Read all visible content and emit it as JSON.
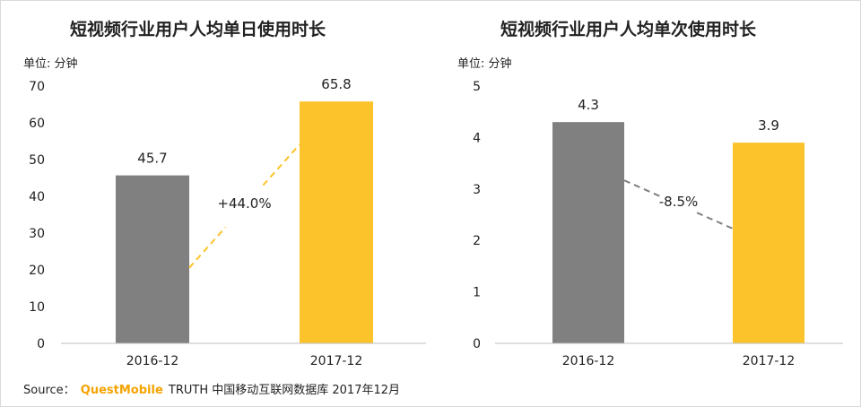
{
  "source": {
    "prefix": "Source：",
    "brand": "QuestMobile",
    "suffix": "TRUTH 中国移动互联网数据库 2017年12月"
  },
  "chart_data": [
    {
      "type": "bar",
      "title": "短视频行业用户人均单日使用时长",
      "unit_label": "单位: 分钟",
      "categories": [
        "2016-12",
        "2017-12"
      ],
      "values": [
        45.7,
        65.8
      ],
      "value_labels": [
        "45.7",
        "65.8"
      ],
      "ylim": [
        0,
        70
      ],
      "yticks": [
        0,
        10,
        20,
        30,
        40,
        50,
        60,
        70
      ],
      "bar_colors": [
        "#808080",
        "#fdc32a"
      ],
      "change_label": "+44.0%",
      "change_line_color": "#fdc32a",
      "grid": false,
      "legend": "none"
    },
    {
      "type": "bar",
      "title": "短视频行业用户人均单次使用时长",
      "unit_label": "单位: 分钟",
      "categories": [
        "2016-12",
        "2017-12"
      ],
      "values": [
        4.3,
        3.9
      ],
      "value_labels": [
        "4.3",
        "3.9"
      ],
      "ylim": [
        0,
        5
      ],
      "yticks": [
        0,
        1,
        2,
        3,
        4,
        5
      ],
      "bar_colors": [
        "#808080",
        "#fdc32a"
      ],
      "change_label": "-8.5%",
      "change_line_color": "#808080",
      "grid": false,
      "legend": "none"
    }
  ]
}
